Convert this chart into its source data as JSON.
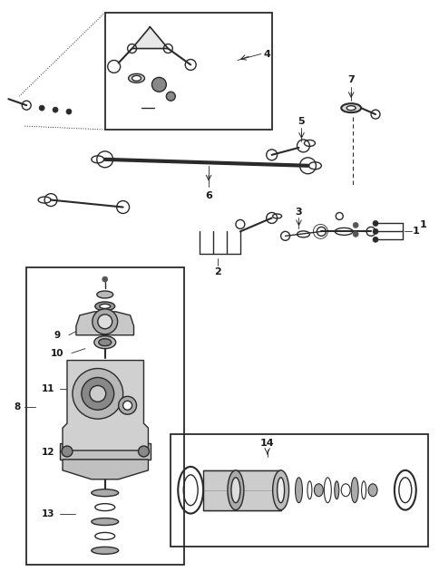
{
  "bg_color": "#ffffff",
  "line_color": "#2a2a2a",
  "label_color": "#1a1a1a",
  "fig_width": 4.85,
  "fig_height": 6.41,
  "dpi": 100
}
